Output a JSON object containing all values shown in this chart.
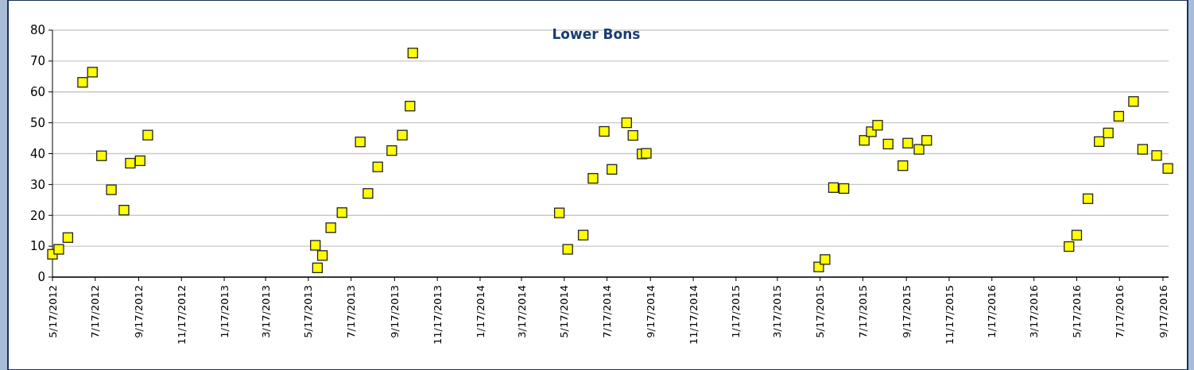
{
  "chart_data": {
    "type": "scatter",
    "title": "Lower Bons",
    "marker": "square",
    "grid": "y",
    "xlim": [
      "2012-05-17",
      "2016-09-25"
    ],
    "xticks": [
      {
        "value": "2012-05-17",
        "label": "5/17/2012"
      },
      {
        "value": "2012-07-17",
        "label": "7/17/2012"
      },
      {
        "value": "2012-09-17",
        "label": "9/17/2012"
      },
      {
        "value": "2012-11-17",
        "label": "11/17/2012"
      },
      {
        "value": "2013-01-17",
        "label": "1/17/2013"
      },
      {
        "value": "2013-03-17",
        "label": "3/17/2013"
      },
      {
        "value": "2013-05-17",
        "label": "5/17/2013"
      },
      {
        "value": "2013-07-17",
        "label": "7/17/2013"
      },
      {
        "value": "2013-09-17",
        "label": "9/17/2013"
      },
      {
        "value": "2013-11-17",
        "label": "11/17/2013"
      },
      {
        "value": "2014-01-17",
        "label": "1/17/2014"
      },
      {
        "value": "2014-03-17",
        "label": "3/17/2014"
      },
      {
        "value": "2014-05-17",
        "label": "5/17/2014"
      },
      {
        "value": "2014-07-17",
        "label": "7/17/2014"
      },
      {
        "value": "2014-09-17",
        "label": "9/17/2014"
      },
      {
        "value": "2014-11-17",
        "label": "11/17/2014"
      },
      {
        "value": "2015-01-17",
        "label": "1/17/2015"
      },
      {
        "value": "2015-03-17",
        "label": "3/17/2015"
      },
      {
        "value": "2015-05-17",
        "label": "5/17/2015"
      },
      {
        "value": "2015-07-17",
        "label": "7/17/2015"
      },
      {
        "value": "2015-09-17",
        "label": "9/17/2015"
      },
      {
        "value": "2015-11-17",
        "label": "11/17/2015"
      },
      {
        "value": "2016-01-17",
        "label": "1/17/2016"
      },
      {
        "value": "2016-03-17",
        "label": "3/17/2016"
      },
      {
        "value": "2016-05-17",
        "label": "5/17/2016"
      },
      {
        "value": "2016-07-17",
        "label": "7/17/2016"
      },
      {
        "value": "2016-09-17",
        "label": "9/17/2016"
      }
    ],
    "ylim": [
      0,
      80
    ],
    "yticks": [
      0,
      10,
      20,
      30,
      40,
      50,
      60,
      70,
      80
    ],
    "series": [
      {
        "color": "#ffff00",
        "x": [
          "2012-05-17",
          "2012-05-26",
          "2012-06-08",
          "2012-06-29",
          "2012-07-13",
          "2012-07-26",
          "2012-08-09",
          "2012-08-27",
          "2012-09-05",
          "2012-09-19",
          "2012-09-30",
          "2013-05-27",
          "2013-05-30",
          "2013-06-06",
          "2013-06-18",
          "2013-07-04",
          "2013-07-30",
          "2013-08-10",
          "2013-08-24",
          "2013-09-13",
          "2013-09-28",
          "2013-10-09",
          "2013-10-13",
          "2014-05-10",
          "2014-05-22",
          "2014-06-13",
          "2014-06-27",
          "2014-07-13",
          "2014-07-24",
          "2014-08-14",
          "2014-08-23",
          "2014-09-05",
          "2014-09-11",
          "2015-05-15",
          "2015-05-24",
          "2015-06-05",
          "2015-06-20",
          "2015-07-19",
          "2015-07-29",
          "2015-08-07",
          "2015-08-22",
          "2015-09-12",
          "2015-09-19",
          "2015-10-05",
          "2015-10-16",
          "2016-05-06",
          "2016-05-17",
          "2016-06-02",
          "2016-06-18",
          "2016-07-01",
          "2016-07-16",
          "2016-08-06",
          "2016-08-19",
          "2016-09-08",
          "2016-09-24"
        ],
        "values": [
          7.4,
          9.0,
          12.8,
          63.1,
          66.4,
          39.3,
          28.3,
          21.7,
          36.9,
          37.7,
          46.0,
          10.3,
          3.0,
          7.0,
          16.0,
          20.9,
          43.8,
          27.1,
          35.7,
          41.0,
          46.0,
          55.4,
          72.6,
          20.8,
          9.0,
          13.6,
          32.0,
          47.2,
          34.9,
          50.0,
          45.9,
          39.9,
          40.1,
          3.3,
          5.7,
          29.0,
          28.7,
          44.3,
          47.1,
          49.2,
          43.1,
          36.1,
          43.4,
          41.4,
          44.3,
          9.9,
          13.6,
          25.4,
          43.9,
          46.7,
          52.1,
          56.9,
          41.4,
          39.4,
          35.2
        ]
      }
    ]
  }
}
